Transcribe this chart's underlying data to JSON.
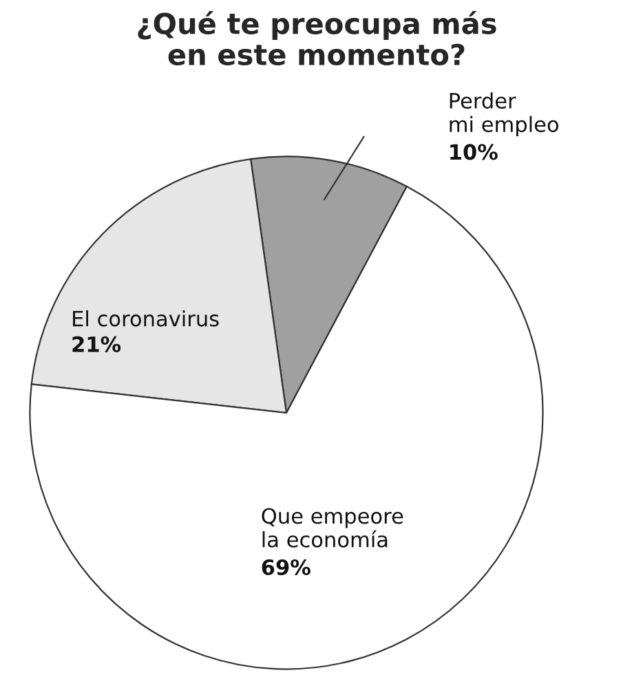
{
  "chart_data": {
    "type": "pie",
    "title": "¿Qué te preocupa más\nen este momento?",
    "categories": [
      "Perder\nmi empleo",
      "El coronavirus",
      "Que empeore\nla economía"
    ],
    "values": [
      10,
      21,
      69
    ],
    "value_labels": [
      "10%",
      "21%",
      "69%"
    ],
    "colors": [
      "#a0a0a0",
      "#e6e6e6",
      "#ffffff"
    ]
  }
}
